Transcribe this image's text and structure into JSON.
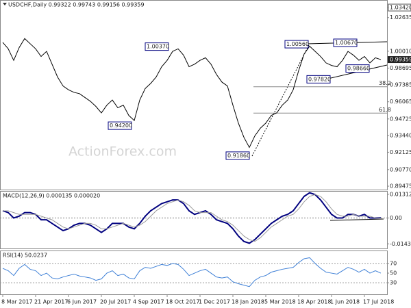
{
  "header": "USDCHF,Daily 0.99322 0.99743 0.99156 0.99359",
  "watermark": "ActionForex.com",
  "chart_data": [
    {
      "type": "line",
      "categories": [
        "8 Mar 2017",
        null,
        null,
        null,
        null,
        null,
        "21 Apr 2017",
        null,
        null,
        null,
        null,
        null,
        "6 Jun 2017",
        null,
        null,
        null,
        null,
        null,
        "20 Jul 2017",
        null,
        null,
        null,
        null,
        null,
        "4 Sep 2017",
        null,
        null,
        null,
        null,
        null,
        "18 Oct 2017",
        null,
        null,
        null,
        null,
        null,
        "1 Dec 2017",
        null,
        null,
        null,
        null,
        null,
        "18 Jan 2018",
        null,
        null,
        null,
        null,
        null,
        "5 Mar 2018",
        null,
        null,
        null,
        null,
        null,
        "18 Apr 2018",
        null,
        null,
        null,
        null,
        null,
        "1 Jun 2018",
        null,
        null,
        null,
        null,
        null,
        "17 Jul 2018",
        null,
        null,
        null
      ],
      "values": [
        1.007,
        1.002,
        0.993,
        1.003,
        1.01,
        1.006,
        1.002,
        0.996,
        1.0,
        0.99,
        0.98,
        0.973,
        0.97,
        0.968,
        0.967,
        0.964,
        0.961,
        0.957,
        0.952,
        0.958,
        0.962,
        0.956,
        0.958,
        0.95,
        0.946,
        0.962,
        0.971,
        0.975,
        0.98,
        0.988,
        0.993,
        1.0,
        1.002,
        0.997,
        0.988,
        0.99,
        0.993,
        0.995,
        0.99,
        0.982,
        0.976,
        0.973,
        0.958,
        0.944,
        0.933,
        0.925,
        0.934,
        0.94,
        0.944,
        0.95,
        0.952,
        0.958,
        0.962,
        0.97,
        0.985,
        0.998,
        1.004,
        1.0,
        0.996,
        0.991,
        0.989,
        0.988,
        0.993,
        1.0,
        0.997,
        0.993,
        0.996,
        0.991,
        0.995,
        0.99359
      ],
      "color": "#000000",
      "ylim": [
        0.8921,
        1.0401
      ],
      "yticks": [
        {
          "value": 1.0342,
          "label": "1.03420"
        },
        {
          "value": 1.02635,
          "label": "1.02635"
        },
        {
          "value": 1.0001,
          "label": "1.00010"
        },
        {
          "value": 0.98695,
          "label": "0.98695"
        },
        {
          "value": 0.97385,
          "label": "0.97385"
        },
        {
          "value": 0.96065,
          "label": "0.96065"
        },
        {
          "value": 0.94725,
          "label": "0.94725"
        },
        {
          "value": 0.9344,
          "label": "0.93440"
        },
        {
          "value": 0.92125,
          "label": "0.92125"
        },
        {
          "value": 0.9077,
          "label": "0.90770"
        },
        {
          "value": 0.89475,
          "label": "0.89475"
        }
      ],
      "last_price": {
        "value": 0.99359,
        "label": "0.99359"
      },
      "annotations": [
        {
          "value": 1.0037,
          "label": "1.00370"
        },
        {
          "value": 0.942,
          "label": "0.94200"
        },
        {
          "value": 0.9186,
          "label": "0.91860"
        },
        {
          "value": 1.0056,
          "label": "1.00560"
        },
        {
          "value": 1.0067,
          "label": "1.00670"
        },
        {
          "value": 0.9782,
          "label": "0.97820"
        },
        {
          "value": 0.9866,
          "label": "0.98660"
        }
      ],
      "fib_levels": [
        {
          "value": 0.9724,
          "label": "38.2"
        },
        {
          "value": 0.9518,
          "label": "61.8"
        }
      ]
    },
    {
      "type": "line",
      "title": "MACD(12,26,9) 0.000135 0.000020",
      "series": [
        {
          "color": "#00007f",
          "values": [
            0.004,
            0.003,
            0.0,
            0.001,
            0.003,
            0.003,
            0.002,
            -0.001,
            -0.001,
            -0.003,
            -0.005,
            -0.007,
            -0.006,
            -0.004,
            -0.003,
            -0.003,
            -0.004,
            -0.006,
            -0.008,
            -0.006,
            -0.003,
            -0.003,
            -0.003,
            -0.005,
            -0.006,
            -0.003,
            0.001,
            0.004,
            0.006,
            0.008,
            0.009,
            0.01,
            0.01,
            0.008,
            0.004,
            0.002,
            0.003,
            0.004,
            0.002,
            -0.001,
            -0.002,
            -0.003,
            -0.006,
            -0.01,
            -0.013,
            -0.014,
            -0.012,
            -0.009,
            -0.006,
            -0.003,
            -0.001,
            0.001,
            0.002,
            0.004,
            0.008,
            0.012,
            0.014,
            0.013,
            0.01,
            0.006,
            0.002,
            0.0,
            0.0,
            0.002,
            0.002,
            0.001,
            0.002,
            0.0,
            0.0,
            0.000135
          ]
        },
        {
          "color": "#9a9a9a",
          "values": [
            0.004,
            0.004,
            0.003,
            0.002,
            0.002,
            0.002,
            0.002,
            0.001,
            0.0,
            -0.001,
            -0.003,
            -0.005,
            -0.006,
            -0.005,
            -0.004,
            -0.003,
            -0.003,
            -0.004,
            -0.006,
            -0.006,
            -0.005,
            -0.004,
            -0.003,
            -0.004,
            -0.005,
            -0.004,
            -0.002,
            0.001,
            0.004,
            0.006,
            0.008,
            0.009,
            0.01,
            0.009,
            0.007,
            0.004,
            0.003,
            0.003,
            0.003,
            0.001,
            -0.001,
            -0.002,
            -0.004,
            -0.007,
            -0.01,
            -0.012,
            -0.013,
            -0.011,
            -0.008,
            -0.005,
            -0.003,
            -0.001,
            0.001,
            0.002,
            0.005,
            0.009,
            0.012,
            0.013,
            0.012,
            0.009,
            0.005,
            0.002,
            0.001,
            0.001,
            0.002,
            0.001,
            0.001,
            0.001,
            0.0,
            2e-05
          ]
        }
      ],
      "ylim": [
        -0.0169,
        0.015
      ],
      "yticks": [
        0.013121,
        {
          "value": 0,
          "label": "0.00"
        },
        -0.014339
      ],
      "zero_line": true
    },
    {
      "type": "line",
      "title": "RSI(14) 50.0237",
      "values": [
        60,
        55,
        45,
        60,
        68,
        58,
        55,
        45,
        50,
        40,
        38,
        42,
        45,
        48,
        44,
        42,
        40,
        35,
        38,
        50,
        55,
        45,
        48,
        40,
        38,
        55,
        62,
        60,
        64,
        68,
        66,
        70,
        68,
        58,
        45,
        50,
        55,
        58,
        50,
        42,
        40,
        42,
        32,
        28,
        25,
        22,
        35,
        42,
        45,
        52,
        55,
        58,
        60,
        62,
        72,
        80,
        82,
        70,
        60,
        52,
        50,
        48,
        55,
        62,
        58,
        52,
        58,
        50,
        55,
        50.0237
      ],
      "color": "#3d7fd6",
      "ylim": [
        6,
        97
      ],
      "yticks": [
        70,
        50,
        30
      ],
      "levels": [
        70,
        30
      ]
    }
  ]
}
